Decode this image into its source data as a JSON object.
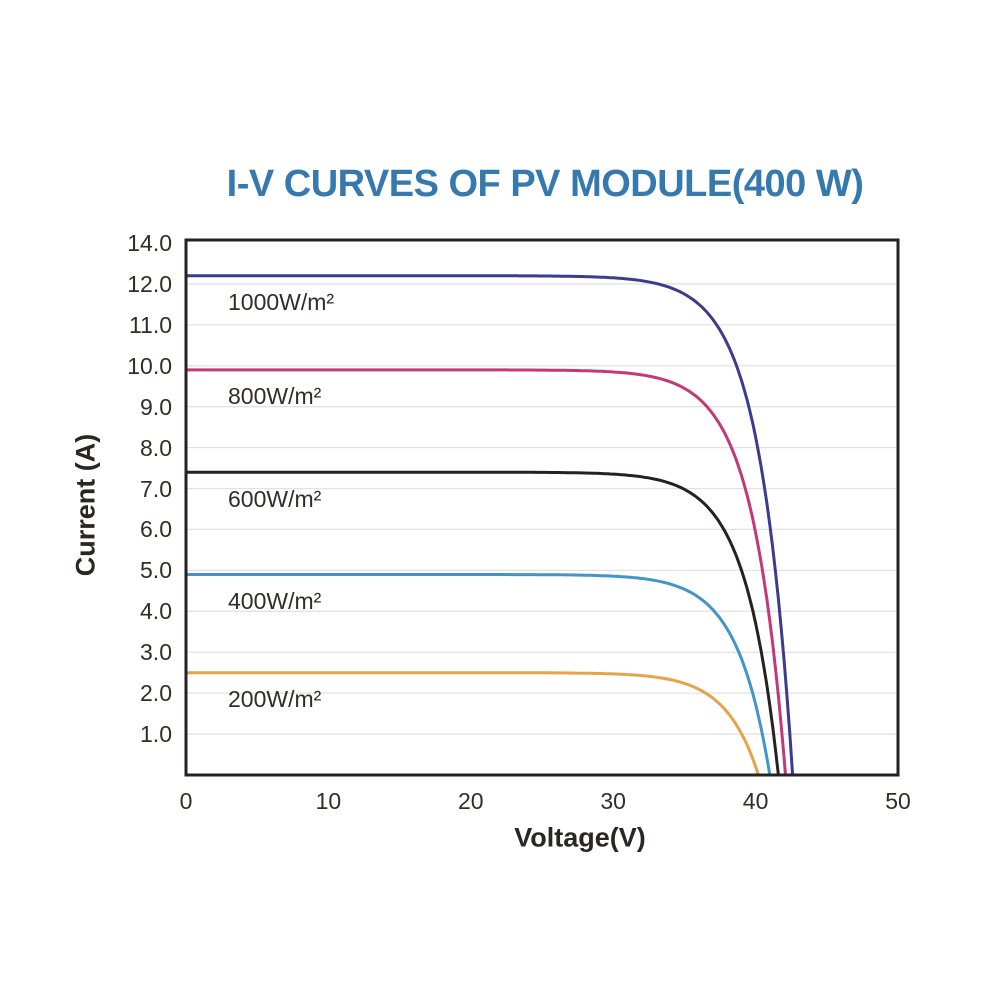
{
  "colors": {
    "title": "#3579ae",
    "axis_border": "#262222",
    "gridline": "#e3e1e1",
    "tick_text": "#332c29",
    "series_label_text": "#332c29",
    "background": "#ffffff"
  },
  "chart_data": {
    "type": "line",
    "title": "I-V CURVES OF PV MODULE(400 W)",
    "xlabel": "Voltage(V)",
    "ylabel": "Current (A)",
    "xlim": [
      0,
      50
    ],
    "x_ticks": [
      "0",
      "10",
      "20",
      "30",
      "40",
      "50"
    ],
    "y_tick_labels_bottom_to_top": [
      "1.0",
      "2.0",
      "3.0",
      "4.0",
      "5.0",
      "6.0",
      "7.0",
      "8.0",
      "9.0",
      "10.0",
      "11.0",
      "12.0",
      "14.0"
    ],
    "y_axis_note": "ticks evenly spaced; label 13.0 skipped, top tick reads 14.0",
    "grid": "horizontal-only",
    "legend": "inline-labels-inside-plot",
    "series": [
      {
        "label": "1000W/m²",
        "color": "#3c3b8e",
        "isc_a": 12.2,
        "voc_v": 42.6
      },
      {
        "label": "800W/m²",
        "color": "#c53878",
        "isc_a": 9.9,
        "voc_v": 42.1
      },
      {
        "label": "600W/m²",
        "color": "#262121",
        "isc_a": 7.4,
        "voc_v": 41.6
      },
      {
        "label": "400W/m²",
        "color": "#4295cb",
        "isc_a": 4.9,
        "voc_v": 41.0
      },
      {
        "label": "200W/m²",
        "color": "#e6a34c",
        "isc_a": 2.5,
        "voc_v": 40.2
      }
    ],
    "curve_model": {
      "formula": "I = Isc*(1-exp((V-Voc)/a))",
      "a_volts": 2.3
    }
  }
}
